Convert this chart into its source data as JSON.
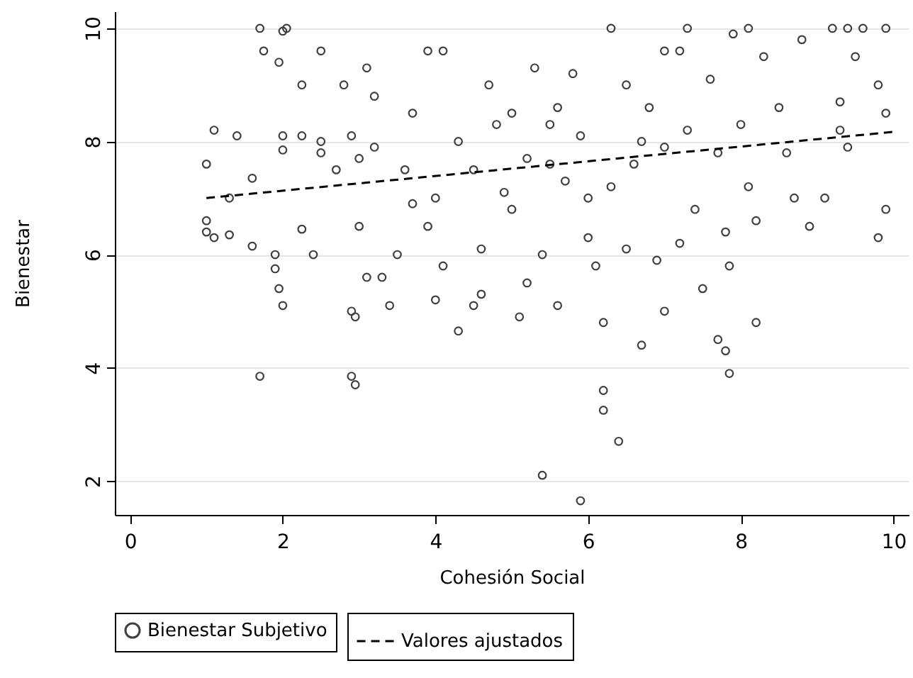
{
  "chart_data": {
    "type": "scatter",
    "xlabel": "Cohesión Social",
    "ylabel": "Bienestar",
    "xlim": [
      -0.2,
      10.2
    ],
    "ylim": [
      1.4,
      10.3
    ],
    "xticks": [
      0,
      2,
      4,
      6,
      8,
      10
    ],
    "yticks": [
      2,
      4,
      6,
      8,
      10
    ],
    "grid": "y",
    "legend": "bottom",
    "series": [
      {
        "name": "Bienestar Subjetivo",
        "marker": "circle",
        "color": "#404040",
        "x": [
          1.7,
          2.9,
          2.95,
          5.4,
          5.9,
          6.2,
          6.2,
          6.4,
          7.85,
          7.8,
          7.7,
          6.7,
          4.3,
          1.7,
          2.05,
          2.0,
          1.75,
          1.95,
          2.5,
          1.0,
          1.1,
          1.0,
          1.0,
          1.1,
          1.3,
          1.4,
          1.3,
          1.6,
          1.6,
          1.9,
          1.95,
          2.0,
          1.9,
          2.0,
          2.0,
          2.25,
          2.25,
          2.4,
          2.25,
          2.5,
          2.5,
          2.7,
          2.8,
          2.9,
          3.0,
          3.1,
          3.2,
          3.2,
          3.0,
          3.1,
          3.3,
          3.4,
          2.9,
          2.95,
          3.5,
          3.6,
          3.7,
          3.9,
          4.1,
          4.0,
          3.9,
          4.0,
          4.1,
          3.7,
          4.5,
          4.6,
          4.5,
          4.7,
          4.8,
          4.3,
          4.6,
          5.0,
          5.2,
          5.0,
          5.3,
          5.5,
          5.6,
          5.4,
          5.2,
          5.1,
          5.6,
          5.8,
          5.9,
          6.0,
          6.1,
          6.2,
          6.5,
          6.5,
          6.6,
          6.8,
          6.9,
          7.0,
          7.0,
          7.2,
          7.3,
          7.4,
          7.5,
          7.6,
          7.7,
          7.8,
          7.85,
          7.9,
          8.0,
          8.1,
          8.2,
          8.2,
          8.1,
          8.3,
          8.5,
          8.6,
          8.7,
          8.9,
          8.8,
          9.2,
          9.4,
          9.6,
          9.9,
          9.3,
          9.4,
          9.5,
          9.8,
          9.9,
          9.9,
          9.8,
          9.1,
          9.3,
          6.3,
          6.7,
          5.7,
          4.9,
          7.2,
          6.0,
          5.5,
          6.3,
          7.3,
          7.0
        ],
        "values": [
          3.85,
          3.85,
          3.7,
          2.1,
          1.65,
          3.6,
          3.25,
          2.7,
          3.9,
          4.3,
          4.5,
          4.4,
          4.65,
          10.0,
          10.0,
          9.95,
          9.6,
          9.4,
          9.6,
          7.6,
          8.2,
          6.4,
          6.6,
          6.3,
          6.35,
          8.1,
          7.0,
          6.15,
          7.35,
          6.0,
          5.4,
          5.1,
          5.75,
          8.1,
          7.85,
          8.1,
          6.45,
          6.0,
          9.0,
          8.0,
          7.8,
          7.5,
          9.0,
          8.1,
          7.7,
          9.3,
          8.8,
          7.9,
          6.5,
          5.6,
          5.6,
          5.1,
          5.0,
          4.9,
          6.0,
          7.5,
          8.5,
          9.6,
          9.6,
          7.0,
          6.5,
          5.2,
          5.8,
          6.9,
          5.1,
          5.3,
          7.5,
          9.0,
          8.3,
          8.0,
          6.1,
          8.5,
          7.7,
          6.8,
          9.3,
          7.6,
          8.6,
          6.0,
          5.5,
          4.9,
          5.1,
          9.2,
          8.1,
          7.0,
          5.8,
          4.8,
          9.0,
          6.1,
          7.6,
          8.6,
          5.9,
          7.9,
          5.0,
          9.6,
          8.2,
          6.8,
          5.4,
          9.1,
          7.8,
          6.4,
          5.8,
          9.9,
          8.3,
          7.2,
          6.6,
          4.8,
          10.0,
          9.5,
          8.6,
          7.8,
          7.0,
          6.5,
          9.8,
          10.0,
          10.0,
          10.0,
          10.0,
          8.2,
          7.9,
          9.5,
          9.0,
          8.5,
          6.8,
          6.3,
          7.0,
          8.7,
          7.2,
          8.0,
          7.3,
          7.1,
          6.2,
          6.3,
          8.3,
          10.0,
          10.0,
          9.6
        ]
      },
      {
        "name": "Valores ajustados",
        "type": "line",
        "line_style": "dashed",
        "color": "#000000",
        "x": [
          1.0,
          10.0
        ],
        "values": [
          7.0,
          8.17
        ]
      }
    ]
  }
}
